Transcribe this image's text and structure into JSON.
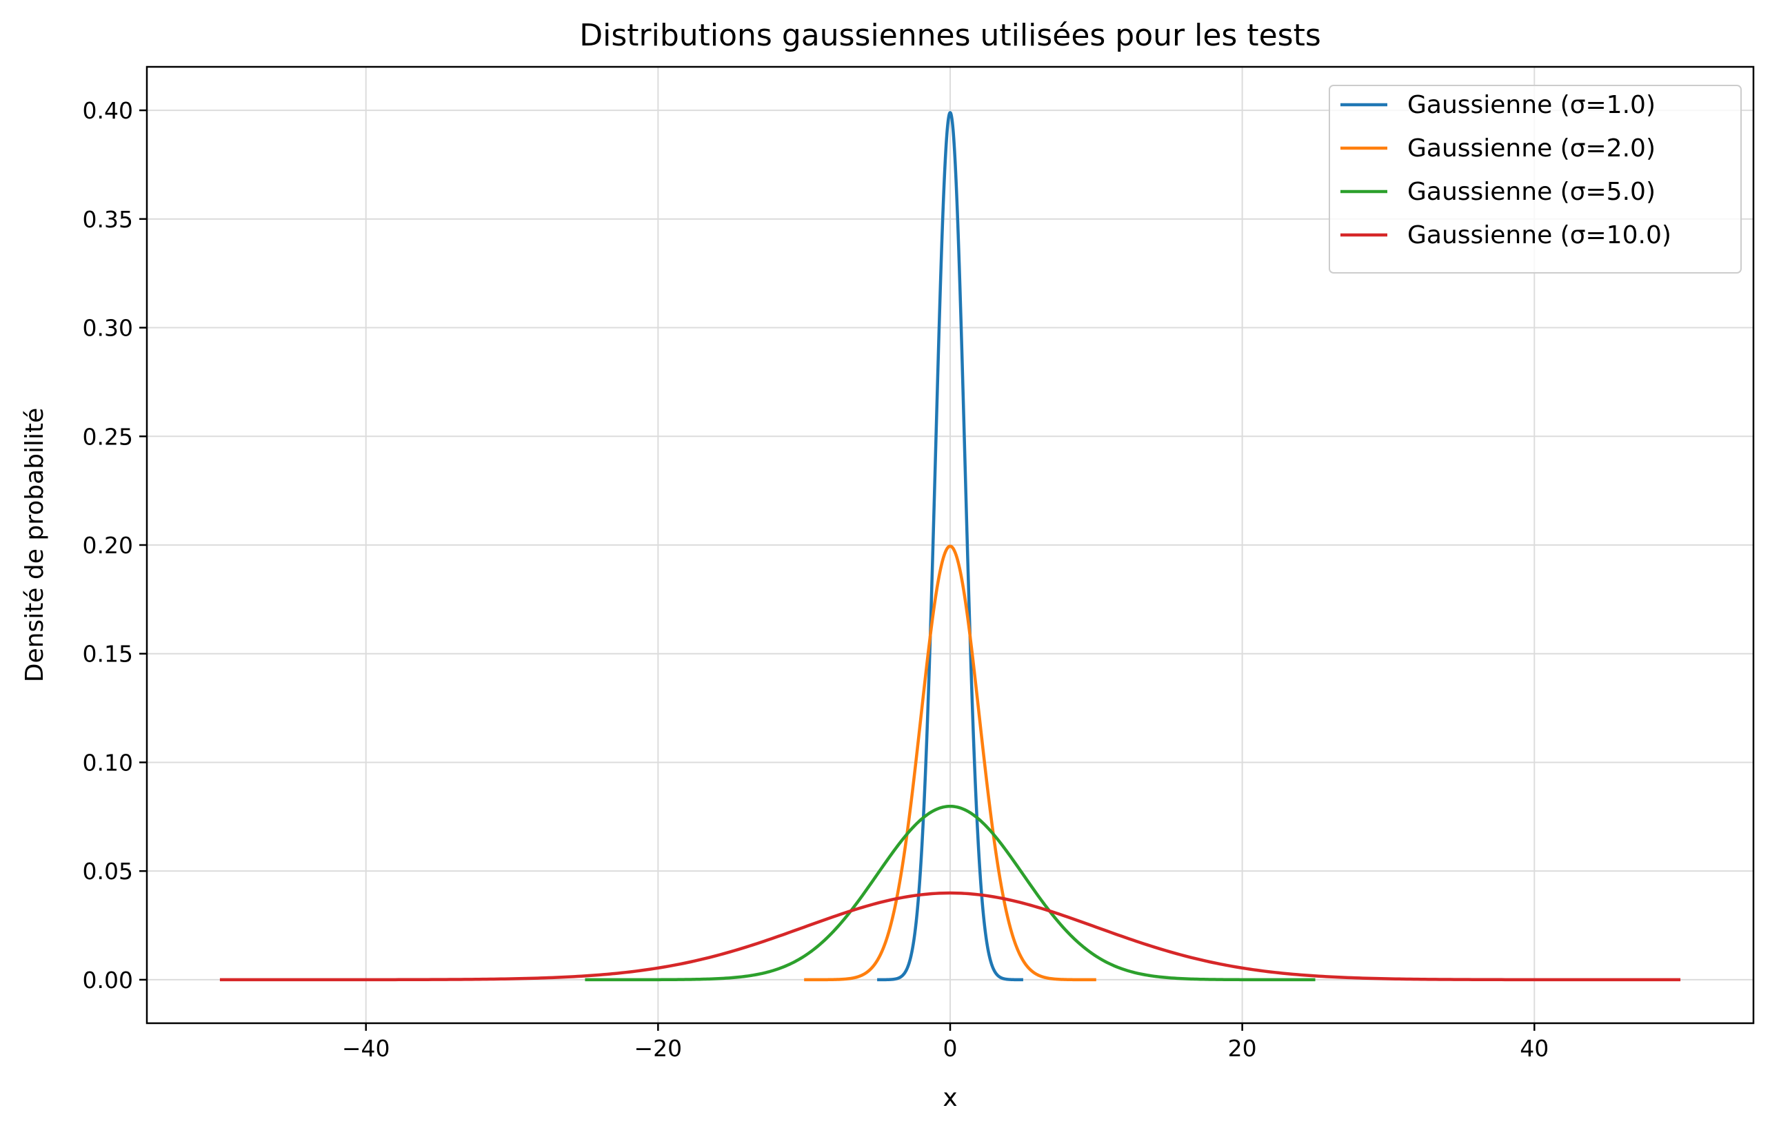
{
  "chart_data": {
    "type": "line",
    "title": "Distributions gaussiennes utilisées pour les tests",
    "xlabel": "x",
    "ylabel": "Densité de probabilité",
    "xlim": [
      -55,
      55
    ],
    "ylim": [
      -0.02,
      0.42
    ],
    "xticks": [
      -40,
      -20,
      0,
      20,
      40
    ],
    "xtick_labels": [
      "−40",
      "−20",
      "0",
      "20",
      "40"
    ],
    "yticks": [
      0.0,
      0.05,
      0.1,
      0.15,
      0.2,
      0.25,
      0.3,
      0.35,
      0.4
    ],
    "ytick_labels": [
      "0.00",
      "0.05",
      "0.10",
      "0.15",
      "0.20",
      "0.25",
      "0.30",
      "0.35",
      "0.40"
    ],
    "grid": true,
    "legend_position": "top-right",
    "series": [
      {
        "name": "Gaussienne (σ=1.0)",
        "color": "#1f77b4",
        "x": [
          -5,
          -4,
          -3,
          -2.5,
          -2,
          -1.5,
          -1,
          -0.5,
          0,
          0.5,
          1,
          1.5,
          2,
          2.5,
          3,
          4,
          5
        ],
        "y": [
          0.0,
          0.0001,
          0.0044,
          0.0175,
          0.054,
          0.1295,
          0.242,
          0.3521,
          0.3989,
          0.3521,
          0.242,
          0.1295,
          0.054,
          0.0175,
          0.0044,
          0.0001,
          0.0
        ]
      },
      {
        "name": "Gaussienne (σ=2.0)",
        "color": "#ff7f0e",
        "x": [
          -10,
          -8,
          -6,
          -5,
          -4,
          -3,
          -2,
          -1,
          0,
          1,
          2,
          3,
          4,
          5,
          6,
          8,
          10
        ],
        "y": [
          0.0,
          0.0001,
          0.0022,
          0.0088,
          0.027,
          0.0648,
          0.121,
          0.176,
          0.1995,
          0.176,
          0.121,
          0.0648,
          0.027,
          0.0088,
          0.0022,
          0.0001,
          0.0
        ]
      },
      {
        "name": "Gaussienne (σ=5.0)",
        "color": "#2ca02c",
        "x": [
          -25,
          -20,
          -15,
          -12.5,
          -10,
          -7.5,
          -5,
          -2.5,
          0,
          2.5,
          5,
          7.5,
          10,
          12.5,
          15,
          20,
          25
        ],
        "y": [
          0.0,
          0.0001,
          0.0009,
          0.0035,
          0.0108,
          0.0259,
          0.0484,
          0.0704,
          0.0798,
          0.0704,
          0.0484,
          0.0259,
          0.0108,
          0.0035,
          0.0009,
          0.0001,
          0.0
        ]
      },
      {
        "name": "Gaussienne (σ=10.0)",
        "color": "#d62728",
        "x": [
          -50,
          -40,
          -35,
          -30,
          -25,
          -20,
          -15,
          -10,
          -5,
          0,
          5,
          10,
          15,
          20,
          25,
          30,
          35,
          40,
          50
        ],
        "y": [
          0.0,
          0.0001,
          0.0009,
          0.0044,
          0.0175,
          0.0054,
          0.013,
          0.0242,
          0.0352,
          0.0399,
          0.0352,
          0.0242,
          0.013,
          0.0054,
          0.0018,
          0.0004,
          0.0001,
          0.0,
          0.0
        ]
      }
    ]
  }
}
